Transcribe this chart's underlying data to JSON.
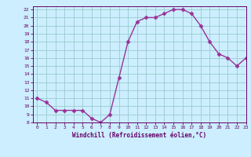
{
  "x": [
    0,
    1,
    2,
    3,
    4,
    5,
    6,
    7,
    8,
    9,
    10,
    11,
    12,
    13,
    14,
    15,
    16,
    17,
    18,
    19,
    20,
    21,
    22,
    23
  ],
  "y": [
    11,
    10.5,
    9.5,
    9.5,
    9.5,
    9.5,
    8.5,
    8,
    9,
    13.5,
    18,
    20.5,
    21,
    21,
    21.5,
    22,
    22,
    21.5,
    20,
    18,
    16.5,
    16,
    15,
    16
  ],
  "xlabel": "Windchill (Refroidissement éolien,°C)",
  "xlim": [
    -0.5,
    23
  ],
  "ylim": [
    8,
    22.4
  ],
  "yticks": [
    8,
    9,
    10,
    11,
    12,
    13,
    14,
    15,
    16,
    17,
    18,
    19,
    20,
    21,
    22
  ],
  "xticks": [
    0,
    1,
    2,
    3,
    4,
    5,
    6,
    7,
    8,
    9,
    10,
    11,
    12,
    13,
    14,
    15,
    16,
    17,
    18,
    19,
    20,
    21,
    22,
    23
  ],
  "line_color": "#993399",
  "marker_color": "#993399",
  "bg_color": "#cceeff",
  "grid_color": "#99cccc",
  "tick_color": "#660066",
  "label_color": "#660066",
  "marker": "D",
  "marker_size": 2.5,
  "line_width": 1.0
}
